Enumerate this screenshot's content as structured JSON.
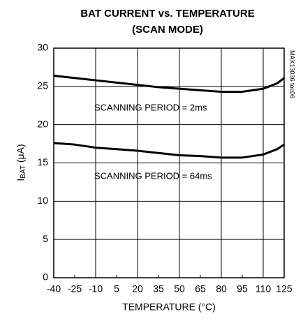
{
  "chart_data": {
    "type": "line",
    "title": [
      "BAT CURRENT vs. TEMPERATURE",
      "(SCAN MODE)"
    ],
    "x_label": "TEMPERATURE (°C)",
    "y_label": {
      "main": "I",
      "sub": "BAT",
      "unit": " (μA)"
    },
    "watermark": "MAX13036 toc06",
    "x": [
      -40,
      -25,
      -10,
      5,
      20,
      35,
      50,
      65,
      80,
      95,
      110,
      120,
      125
    ],
    "series": [
      {
        "color": "#000000",
        "values": [
          26.4,
          26.1,
          25.8,
          25.5,
          25.2,
          24.9,
          24.7,
          24.5,
          24.3,
          24.3,
          24.7,
          25.4,
          26.1
        ]
      },
      {
        "color": "#000000",
        "values": [
          17.6,
          17.4,
          17.0,
          16.8,
          16.6,
          16.3,
          16.0,
          15.9,
          15.7,
          15.7,
          16.1,
          16.8,
          17.4
        ]
      }
    ],
    "annotations": [
      "SCANNING PERIOD = 2ms",
      "SCANNING PERIOD = 64ms"
    ],
    "xlim": [
      -40,
      125
    ],
    "xticks": [
      -40,
      -25,
      -10,
      5,
      20,
      35,
      50,
      65,
      80,
      95,
      110,
      125
    ],
    "ylim": [
      0,
      30
    ],
    "yticks": [
      0,
      5,
      10,
      15,
      20,
      25,
      30
    ],
    "grid": true
  }
}
